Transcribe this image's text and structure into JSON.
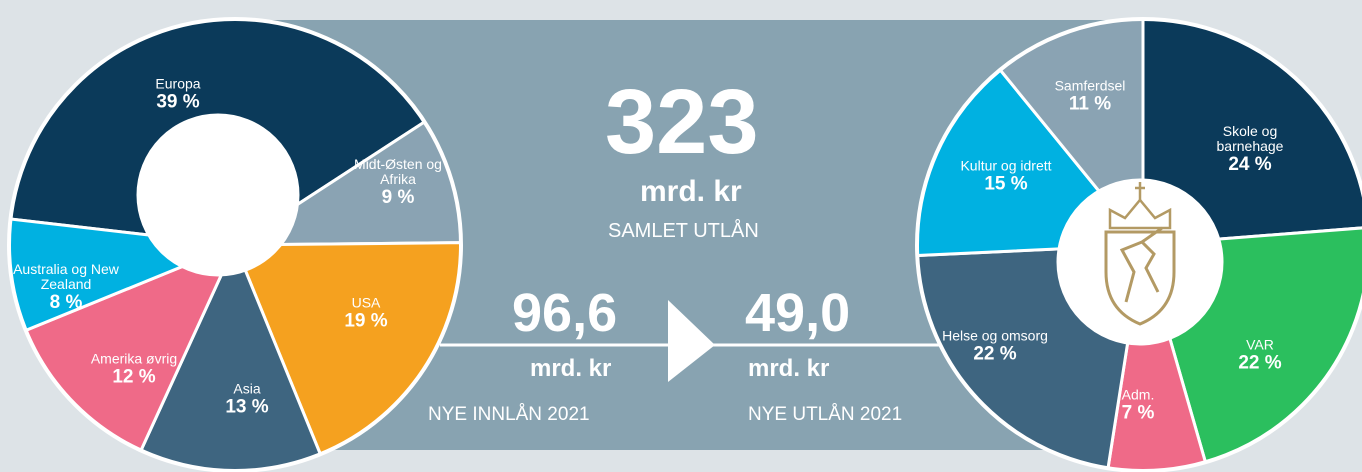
{
  "chart_data": [
    {
      "type": "pie",
      "categories": [
        "Europa",
        "Midt-Østen og Afrika",
        "USA",
        "Asia",
        "Amerika øvrig",
        "Australia og New Zealand"
      ],
      "values": [
        39,
        9,
        19,
        13,
        12,
        8
      ],
      "value_labels": [
        "39 %",
        "9 %",
        "19 %",
        "13 %",
        "12 %",
        "8 %"
      ],
      "colors": [
        "#0b3a5a",
        "#8aa3b3",
        "#f5a11f",
        "#3e6580",
        "#ef6a88",
        "#00b1e1"
      ]
    },
    {
      "type": "pie",
      "categories": [
        "Skole og barnehage",
        "VAR",
        "Adm.",
        "Helse og omsorg",
        "Kultur og idrett",
        "Samferdsel"
      ],
      "values": [
        24,
        22,
        7,
        22,
        15,
        11
      ],
      "value_labels": [
        "24 %",
        "22 %",
        "7 %",
        "22 %",
        "15 %",
        "11 %"
      ],
      "colors": [
        "#0b3a5a",
        "#2bbf5e",
        "#ef6a88",
        "#3e6580",
        "#00b1e1",
        "#8aa3b3"
      ]
    }
  ],
  "summary": {
    "total": {
      "value": "323",
      "unit": "mrd. kr",
      "label": "SAMLET UTLÅN"
    },
    "inflow": {
      "value": "96,6",
      "unit": "mrd. kr",
      "label": "NYE INNLÅN 2021"
    },
    "outflow": {
      "value": "49,0",
      "unit": "mrd. kr",
      "label": "NYE UTLÅN 2021"
    }
  }
}
